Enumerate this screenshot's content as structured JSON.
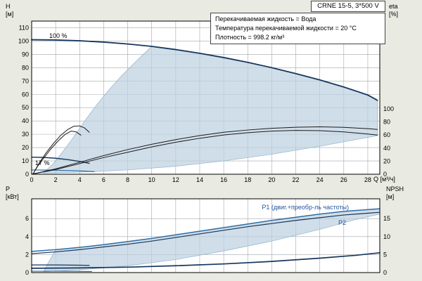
{
  "title_box": {
    "model": "CRNE 15-5, 3*500 V"
  },
  "info_box": {
    "line1": "Перекачиваемая жидкость = Вода",
    "line2": "Температура перекачиваемой жидкости = 20 °C",
    "line3": "Плотность = 998.2 кг/м³"
  },
  "axis_labels": {
    "h": "H",
    "h_unit": "[м]",
    "eta": "eta",
    "eta_unit": "[%]",
    "q": "Q [м³/ч]",
    "p": "P",
    "p_unit": "[кВт]",
    "npsh": "NPSH",
    "npsh_unit": "[м]"
  },
  "colors": {
    "background": "#e9eae2",
    "panel": "#ffffff",
    "grid": "#a0a6ac",
    "border": "#000000",
    "envelope_fill": "#bcd0df",
    "envelope_edge": "#8fb3cc",
    "curve_dark": "#17365d",
    "curve_blue": "#2e6da4",
    "curve_black": "#1a1a1a",
    "label_blue": "#2456a0"
  },
  "chart_data": [
    {
      "type": "line",
      "title": "CRNE 15-5, 3*500 V",
      "xlabel": "Q [м³/ч]",
      "ylabel": "H [м]",
      "y2label": "eta [%]",
      "xlim": [
        0,
        29
      ],
      "ylim": [
        0,
        115
      ],
      "y2lim": [
        0,
        100
      ],
      "xticks": [
        0,
        2,
        4,
        6,
        8,
        10,
        12,
        14,
        16,
        18,
        20,
        22,
        24,
        26,
        28
      ],
      "yticks": [
        0,
        10,
        20,
        30,
        40,
        50,
        60,
        70,
        80,
        90,
        100,
        110
      ],
      "y2ticks": [
        0,
        20,
        40,
        60,
        80,
        100
      ],
      "xgrid": [
        2,
        4,
        6,
        8,
        10,
        12,
        14,
        16,
        18,
        20,
        22,
        24,
        26,
        28
      ],
      "ygrid": [
        10,
        20,
        30,
        40,
        50,
        60,
        70,
        80,
        90,
        100,
        110
      ],
      "grid": true,
      "areas": [
        {
          "name": "operating-envelope",
          "color": "#bcd0df",
          "opacity": 0.7,
          "edge": "#8fb3cc",
          "upper": [
            [
              1,
              1
            ],
            [
              1.8,
              8
            ],
            [
              2.6,
              17
            ],
            [
              3.5,
              28
            ],
            [
              4.5,
              41
            ],
            [
              5.5,
              53
            ],
            [
              6.5,
              64
            ],
            [
              7.5,
              74
            ],
            [
              8.5,
              83
            ],
            [
              9.3,
              90
            ],
            [
              10,
              96
            ],
            [
              12,
              93.6
            ],
            [
              14,
              90.8
            ],
            [
              16,
              87.6
            ],
            [
              18,
              84
            ],
            [
              20,
              80
            ],
            [
              22,
              75.6
            ],
            [
              24,
              70.8
            ],
            [
              26,
              65.5
            ],
            [
              28,
              59.5
            ],
            [
              28.8,
              55.5
            ]
          ],
          "lower": [
            [
              1,
              1
            ],
            [
              4,
              1.5
            ],
            [
              8,
              3.2
            ],
            [
              12,
              6
            ],
            [
              16,
              10
            ],
            [
              20,
              15
            ],
            [
              24,
              21
            ],
            [
              27,
              26
            ],
            [
              28.8,
              29
            ]
          ]
        }
      ],
      "series": [
        {
          "name": "head-curve-100pct",
          "label": "100 %",
          "color": "#17365d",
          "width": 1.8,
          "points": [
            [
              0,
              101
            ],
            [
              2,
              100.8
            ],
            [
              4,
              100.2
            ],
            [
              6,
              99.2
            ],
            [
              8,
              97.8
            ],
            [
              10,
              96
            ],
            [
              12,
              93.6
            ],
            [
              14,
              90.8
            ],
            [
              16,
              87.6
            ],
            [
              18,
              84
            ],
            [
              20,
              80
            ],
            [
              22,
              75.6
            ],
            [
              24,
              70.8
            ],
            [
              26,
              65.5
            ],
            [
              28,
              59.5
            ],
            [
              28.8,
              55.5
            ]
          ]
        },
        {
          "name": "head-curve-min-speed",
          "label": "17 %",
          "color": "#17365d",
          "width": 1.4,
          "points": [
            [
              0,
              12.8
            ],
            [
              1,
              12.6
            ],
            [
              2,
              12
            ],
            [
              3,
              11
            ],
            [
              4,
              9.6
            ],
            [
              4.8,
              8.2
            ]
          ]
        },
        {
          "name": "head-curve-min-speed-blue",
          "color": "#2e6da4",
          "width": 1.2,
          "points": [
            [
              0,
              3.2
            ],
            [
              1.5,
              3.1
            ],
            [
              3,
              2.8
            ],
            [
              4.5,
              2.3
            ],
            [
              5.2,
              1.9
            ]
          ]
        },
        {
          "name": "eta-curve-1",
          "color": "#1a1a1a",
          "width": 1,
          "points": [
            [
              0,
              0
            ],
            [
              2,
              4
            ],
            [
              4,
              9
            ],
            [
              6,
              14
            ],
            [
              8,
              18.5
            ],
            [
              10,
              22.5
            ],
            [
              12,
              26
            ],
            [
              14,
              29
            ],
            [
              16,
              31.5
            ],
            [
              18,
              33.2
            ],
            [
              20,
              34.5
            ],
            [
              22,
              35.3
            ],
            [
              24,
              35.6
            ],
            [
              26,
              35.2
            ],
            [
              28,
              34.2
            ],
            [
              28.8,
              33.6
            ]
          ]
        },
        {
          "name": "eta-curve-2",
          "color": "#1a1a1a",
          "width": 1,
          "points": [
            [
              0,
              0
            ],
            [
              2,
              3.5
            ],
            [
              4,
              8
            ],
            [
              6,
              12.5
            ],
            [
              8,
              16.5
            ],
            [
              10,
              20.5
            ],
            [
              12,
              24
            ],
            [
              14,
              27
            ],
            [
              16,
              29.5
            ],
            [
              18,
              31.2
            ],
            [
              20,
              32.4
            ],
            [
              22,
              32.9
            ],
            [
              24,
              32.7
            ],
            [
              26,
              31.8
            ],
            [
              28,
              30.2
            ],
            [
              28.8,
              29.4
            ]
          ]
        },
        {
          "name": "eta-curve-min-speed-1",
          "color": "#1a1a1a",
          "width": 1,
          "points": [
            [
              0.1,
              0
            ],
            [
              0.6,
              8
            ],
            [
              1.2,
              16
            ],
            [
              1.8,
              23
            ],
            [
              2.4,
              29
            ],
            [
              3,
              33.5
            ],
            [
              3.5,
              36
            ],
            [
              4,
              36.3
            ],
            [
              4.4,
              34.8
            ],
            [
              4.8,
              31.5
            ]
          ]
        },
        {
          "name": "eta-curve-min-speed-2",
          "color": "#1a1a1a",
          "width": 1,
          "points": [
            [
              0.1,
              0
            ],
            [
              0.5,
              6
            ],
            [
              1,
              12
            ],
            [
              1.6,
              19
            ],
            [
              2.2,
              25
            ],
            [
              2.8,
              30
            ],
            [
              3.3,
              32.4
            ],
            [
              3.7,
              31.8
            ],
            [
              4.1,
              29.3
            ]
          ]
        }
      ]
    },
    {
      "type": "line",
      "xlabel": "",
      "ylabel": "P [кВт]",
      "y2label": "NPSH [м]",
      "xlim": [
        0,
        29
      ],
      "ylim": [
        0,
        8.2
      ],
      "y2lim": [
        0,
        20.5
      ],
      "xticks": [],
      "yticks": [
        0,
        2,
        4,
        6
      ],
      "y2ticks": [
        0,
        5,
        10,
        15
      ],
      "xgrid": [
        2,
        4,
        6,
        8,
        10,
        12,
        14,
        16,
        18,
        20,
        22,
        24,
        26,
        28
      ],
      "ygrid": [
        2,
        4,
        6
      ],
      "grid": true,
      "areas": [
        {
          "name": "power-envelope",
          "color": "#bcd0df",
          "opacity": 0.7,
          "edge": "#8fb3cc",
          "upper": [
            [
              1,
              0.1
            ],
            [
              1.3,
              0.9
            ],
            [
              1.7,
              1.8
            ],
            [
              2,
              2.55
            ],
            [
              4,
              2.8
            ],
            [
              6,
              3.1
            ],
            [
              8,
              3.45
            ],
            [
              10,
              3.8
            ],
            [
              12,
              4.2
            ],
            [
              14,
              4.6
            ],
            [
              16,
              5
            ],
            [
              18,
              5.4
            ],
            [
              20,
              5.8
            ],
            [
              22,
              6.15
            ],
            [
              24,
              6.5
            ],
            [
              26,
              6.8
            ],
            [
              28,
              7
            ],
            [
              29,
              7.1
            ]
          ],
          "lower": [
            [
              1,
              0.1
            ],
            [
              4,
              0.3
            ],
            [
              8,
              0.75
            ],
            [
              12,
              1.45
            ],
            [
              16,
              2.4
            ],
            [
              20,
              3.5
            ],
            [
              24,
              4.8
            ],
            [
              27,
              5.9
            ],
            [
              29,
              6.5
            ]
          ]
        }
      ],
      "series": [
        {
          "name": "p1-curve",
          "label": "P1 (двиг.+преобр-ль частоты)",
          "color": "#2e6da4",
          "width": 1.5,
          "points": [
            [
              0,
              2.35
            ],
            [
              2,
              2.55
            ],
            [
              4,
              2.8
            ],
            [
              6,
              3.1
            ],
            [
              8,
              3.45
            ],
            [
              10,
              3.8
            ],
            [
              12,
              4.2
            ],
            [
              14,
              4.6
            ],
            [
              16,
              5
            ],
            [
              18,
              5.4
            ],
            [
              20,
              5.8
            ],
            [
              22,
              6.15
            ],
            [
              24,
              6.5
            ],
            [
              26,
              6.8
            ],
            [
              28,
              7
            ],
            [
              29,
              7.1
            ]
          ]
        },
        {
          "name": "p2-curve",
          "label": "P2",
          "color": "#17365d",
          "width": 1.2,
          "points": [
            [
              0,
              2.1
            ],
            [
              2,
              2.3
            ],
            [
              4,
              2.55
            ],
            [
              6,
              2.85
            ],
            [
              8,
              3.15
            ],
            [
              10,
              3.5
            ],
            [
              12,
              3.9
            ],
            [
              14,
              4.3
            ],
            [
              16,
              4.7
            ],
            [
              18,
              5.1
            ],
            [
              20,
              5.45
            ],
            [
              22,
              5.8
            ],
            [
              24,
              6.1
            ],
            [
              26,
              6.4
            ],
            [
              28,
              6.6
            ],
            [
              29,
              6.7
            ]
          ]
        },
        {
          "name": "npsh-curve",
          "axis": "right",
          "color": "#17365d",
          "width": 1.7,
          "points": [
            [
              0,
              1.2
            ],
            [
              4,
              1.3
            ],
            [
              8,
              1.5
            ],
            [
              12,
              1.9
            ],
            [
              16,
              2.4
            ],
            [
              20,
              3.1
            ],
            [
              24,
              4
            ],
            [
              27,
              4.8
            ],
            [
              29,
              5.5
            ]
          ]
        },
        {
          "name": "p-min-speed-dark",
          "color": "#17365d",
          "width": 1.2,
          "points": [
            [
              0,
              0.85
            ],
            [
              2,
              0.85
            ],
            [
              4,
              0.82
            ],
            [
              4.8,
              0.8
            ]
          ]
        },
        {
          "name": "p-min-speed-blue",
          "color": "#2e6da4",
          "width": 1.1,
          "points": [
            [
              0,
              0.15
            ],
            [
              2,
              0.15
            ],
            [
              4,
              0.13
            ],
            [
              5,
              0.12
            ]
          ]
        }
      ]
    }
  ]
}
